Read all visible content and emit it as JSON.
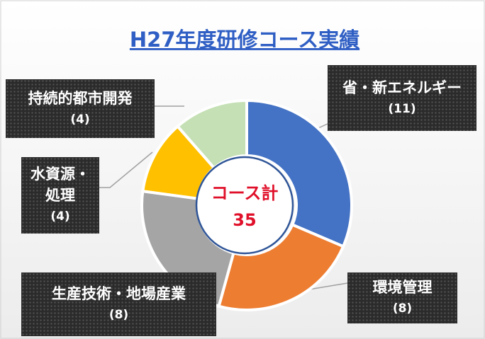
{
  "chart_data": {
    "type": "donut",
    "title": "H27年度研修コース実績",
    "center_label": "コース計",
    "total": 35,
    "categories": [
      "省・新エネルギー",
      "環境管理",
      "生産技術・地場産業",
      "水資源・処理",
      "持続的都市開発"
    ],
    "values": [
      11,
      8,
      8,
      4,
      4
    ],
    "value_labels": [
      "(11)",
      "(8)",
      "(8)",
      "(4)",
      "(4)"
    ],
    "colors": [
      "#4472c4",
      "#ed7d31",
      "#a5a5a5",
      "#ffc000",
      "#c5e0b4"
    ]
  }
}
